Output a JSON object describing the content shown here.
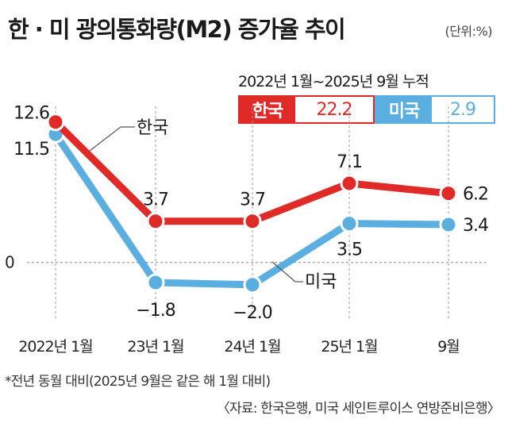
{
  "title": "한 · 미 광의통화량(M2) 증가율 추이",
  "unit": "(단위:%)",
  "cumulative": {
    "label": "2022년 1월~2025년 9월 누적",
    "korea": {
      "name": "한국",
      "value": "22.2"
    },
    "us": {
      "name": "미국",
      "value": "2.9"
    }
  },
  "colors": {
    "korea": "#e02a27",
    "us": "#5aafe0"
  },
  "chart_data": {
    "type": "line",
    "categories": [
      "2022년 1월",
      "23년 1월",
      "24년 1월",
      "25년 1월",
      "9월"
    ],
    "series": [
      {
        "name": "한국",
        "values": [
          12.6,
          3.7,
          3.7,
          7.1,
          6.2
        ]
      },
      {
        "name": "미국",
        "values": [
          11.5,
          -1.8,
          -2.0,
          3.5,
          3.4
        ]
      }
    ],
    "data_labels": {
      "korea": [
        "12.6",
        "3.7",
        "3.7",
        "7.1",
        "6.2"
      ],
      "us": [
        "11.5",
        "−1.8",
        "−2.0",
        "3.5",
        "3.4"
      ]
    },
    "y_tick_label": "0",
    "ylim": [
      -5,
      14
    ],
    "grid": false
  },
  "note": "*전년 동월 대비(2025년 9월은 같은 해 1월 대비)",
  "source": "〈자료: 한국은행, 미국 세인트루이스 연방준비은행〉"
}
